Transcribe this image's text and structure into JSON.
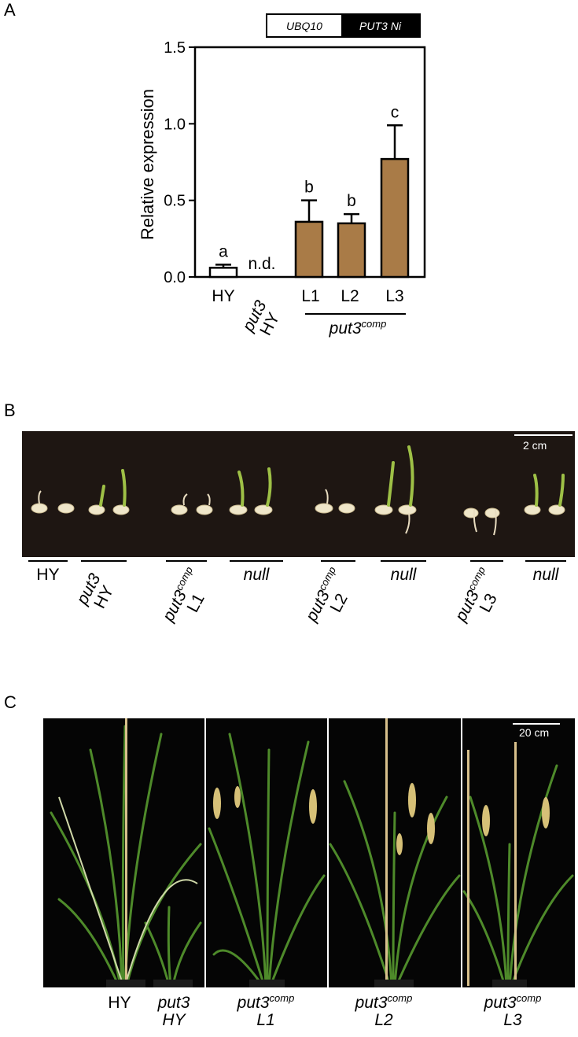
{
  "panels": {
    "a": "A",
    "b": "B",
    "c": "C"
  },
  "legend": {
    "ref": "UBQ10",
    "target": "PUT3 Ni",
    "ref_color": "#ffffff",
    "target_color": "#000000"
  },
  "chart_data": {
    "type": "bar",
    "ylabel": "Relative expression",
    "ylim": [
      0,
      1.5
    ],
    "yticks": [
      "0.0",
      "0.5",
      "1.0",
      "1.5"
    ],
    "categories": [
      "HY",
      "put3 HY",
      "L1",
      "L2",
      "L3"
    ],
    "values": [
      0.06,
      0.0,
      0.36,
      0.35,
      0.77
    ],
    "errors": [
      0.02,
      0.0,
      0.14,
      0.06,
      0.22
    ],
    "significance": [
      "a",
      "n.d.",
      "b",
      "b",
      "c"
    ],
    "group_label": "put3",
    "group_sup": "comp",
    "colors": {
      "wt": "#ffffff",
      "comp": "#a97b47"
    }
  },
  "seedling_panel": {
    "scale": "2 cm",
    "labels": {
      "hy": "HY",
      "put3": "put3",
      "hy2": "HY",
      "comp": "put3",
      "comp_sup": "comp",
      "l1": "L1",
      "l2": "L2",
      "l3": "L3",
      "null": "null"
    }
  },
  "plant_panel": {
    "scale": "20 cm",
    "labels": {
      "hy": "HY",
      "put3": "put3",
      "put3_hy": "HY",
      "comp": "put3",
      "comp_sup": "comp",
      "l1": "L1",
      "l2": "L2",
      "l3": "L3"
    }
  }
}
